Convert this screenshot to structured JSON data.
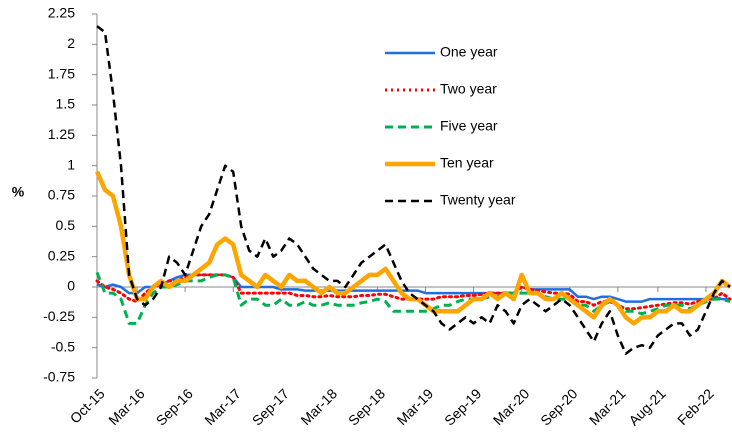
{
  "chart_data": {
    "type": "line",
    "y_label": "%",
    "categories": [
      "Oct-15",
      null,
      null,
      null,
      null,
      "Mar-16",
      null,
      null,
      null,
      null,
      null,
      "Sep-16",
      null,
      null,
      null,
      null,
      null,
      "Mar-17",
      null,
      null,
      null,
      null,
      null,
      "Sep-17",
      null,
      null,
      null,
      null,
      null,
      "Mar-18",
      null,
      null,
      null,
      null,
      null,
      "Sep-18",
      null,
      null,
      null,
      null,
      null,
      "Mar-19",
      null,
      null,
      null,
      null,
      null,
      "Sep-19",
      null,
      null,
      null,
      null,
      null,
      "Mar-20",
      null,
      null,
      null,
      null,
      null,
      "Sep-20",
      null,
      null,
      null,
      null,
      null,
      "Mar-21",
      null,
      null,
      null,
      null,
      "Aug-21",
      null,
      null,
      null,
      null,
      null,
      "Feb-22",
      null,
      null,
      null
    ],
    "ylim": [
      -0.75,
      2.25
    ],
    "yticks": [
      -0.75,
      -0.5,
      -0.25,
      0,
      0.25,
      0.5,
      0.75,
      1,
      1.25,
      1.5,
      1.75,
      2,
      2.25
    ],
    "series": [
      {
        "name": "One year",
        "color": "#1f6fe0",
        "style": "solid",
        "width": 2.5,
        "values": [
          0.02,
          0,
          0.02,
          0,
          -0.05,
          -0.05,
          0,
          0,
          0.02,
          0.05,
          0.08,
          0.1,
          0.1,
          0.1,
          0.1,
          0.1,
          0.1,
          0.08,
          0,
          0,
          0,
          0,
          0,
          -0.02,
          -0.02,
          -0.02,
          -0.03,
          -0.03,
          -0.03,
          -0.03,
          -0.03,
          -0.03,
          -0.03,
          -0.03,
          -0.03,
          -0.03,
          -0.03,
          -0.03,
          -0.03,
          -0.03,
          -0.03,
          -0.05,
          -0.05,
          -0.05,
          -0.05,
          -0.05,
          -0.05,
          -0.05,
          -0.05,
          -0.05,
          -0.05,
          -0.05,
          -0.05,
          0,
          -0.02,
          -0.02,
          -0.02,
          -0.02,
          -0.02,
          -0.02,
          -0.08,
          -0.08,
          -0.1,
          -0.08,
          -0.08,
          -0.1,
          -0.12,
          -0.12,
          -0.12,
          -0.1,
          -0.1,
          -0.1,
          -0.1,
          -0.1,
          -0.1,
          -0.1,
          -0.1,
          -0.08,
          -0.1,
          -0.1
        ]
      },
      {
        "name": "Two year",
        "color": "#ff0000",
        "style": "dotted",
        "width": 3,
        "values": [
          0.05,
          0,
          -0.02,
          -0.05,
          -0.1,
          -0.12,
          -0.05,
          0,
          0.02,
          0.05,
          0.05,
          0.08,
          0.1,
          0.1,
          0.1,
          0.1,
          0.1,
          0.08,
          -0.05,
          -0.05,
          -0.05,
          -0.05,
          -0.05,
          -0.05,
          -0.05,
          -0.07,
          -0.07,
          -0.08,
          -0.08,
          -0.07,
          -0.08,
          -0.08,
          -0.08,
          -0.07,
          -0.07,
          -0.06,
          -0.06,
          -0.08,
          -0.1,
          -0.1,
          -0.1,
          -0.1,
          -0.1,
          -0.08,
          -0.08,
          -0.08,
          -0.07,
          -0.07,
          -0.06,
          -0.05,
          -0.05,
          -0.05,
          -0.05,
          0,
          -0.02,
          -0.03,
          -0.04,
          -0.05,
          -0.05,
          -0.06,
          -0.12,
          -0.12,
          -0.15,
          -0.12,
          -0.12,
          -0.15,
          -0.18,
          -0.18,
          -0.17,
          -0.16,
          -0.15,
          -0.14,
          -0.13,
          -0.13,
          -0.14,
          -0.12,
          -0.1,
          -0.1,
          -0.05,
          -0.1
        ]
      },
      {
        "name": "Five year",
        "color": "#00b050",
        "style": "dashed",
        "width": 3,
        "values": [
          0.12,
          -0.05,
          -0.05,
          -0.1,
          -0.3,
          -0.3,
          -0.15,
          -0.05,
          0,
          0,
          0.02,
          0.05,
          0.05,
          0.05,
          0.08,
          0.1,
          0.1,
          0.08,
          -0.15,
          -0.1,
          -0.1,
          -0.15,
          -0.15,
          -0.1,
          -0.15,
          -0.15,
          -0.12,
          -0.15,
          -0.15,
          -0.13,
          -0.15,
          -0.15,
          -0.15,
          -0.13,
          -0.12,
          -0.1,
          -0.12,
          -0.2,
          -0.2,
          -0.2,
          -0.2,
          -0.2,
          -0.18,
          -0.15,
          -0.15,
          -0.12,
          -0.1,
          -0.1,
          -0.1,
          -0.08,
          -0.08,
          -0.05,
          -0.05,
          -0.05,
          -0.05,
          -0.05,
          -0.08,
          -0.1,
          -0.1,
          -0.1,
          -0.15,
          -0.15,
          -0.2,
          -0.15,
          -0.12,
          -0.15,
          -0.2,
          -0.2,
          -0.22,
          -0.2,
          -0.18,
          -0.15,
          -0.15,
          -0.15,
          -0.18,
          -0.15,
          -0.12,
          -0.1,
          -0.1,
          -0.12
        ]
      },
      {
        "name": "Ten year",
        "color": "#ffa500",
        "style": "solid",
        "width": 4.5,
        "values": [
          0.95,
          0.8,
          0.75,
          0.5,
          0.1,
          -0.1,
          -0.1,
          0,
          0.05,
          0,
          0.05,
          0.05,
          0.1,
          0.15,
          0.2,
          0.35,
          0.4,
          0.35,
          0.1,
          0.05,
          0,
          0.1,
          0.05,
          0,
          0.1,
          0.05,
          0.05,
          0,
          -0.05,
          0,
          -0.05,
          -0.05,
          0,
          0.05,
          0.1,
          0.1,
          0.15,
          0.05,
          -0.05,
          -0.1,
          -0.1,
          -0.15,
          -0.2,
          -0.2,
          -0.2,
          -0.2,
          -0.15,
          -0.1,
          -0.1,
          -0.05,
          -0.1,
          -0.05,
          -0.1,
          0.1,
          -0.05,
          -0.05,
          -0.1,
          -0.1,
          -0.05,
          -0.1,
          -0.15,
          -0.2,
          -0.25,
          -0.15,
          -0.1,
          -0.15,
          -0.25,
          -0.3,
          -0.25,
          -0.25,
          -0.2,
          -0.2,
          -0.15,
          -0.2,
          -0.2,
          -0.15,
          -0.1,
          -0.05,
          0.05,
          0
        ]
      },
      {
        "name": "Twenty year",
        "color": "#000000",
        "style": "dashed",
        "width": 2.5,
        "values": [
          2.15,
          2.1,
          1.6,
          1,
          0.1,
          -0.1,
          -0.15,
          -0.1,
          0,
          0.25,
          0.2,
          0.1,
          0.3,
          0.5,
          0.6,
          0.8,
          1,
          0.95,
          0.5,
          0.3,
          0.25,
          0.4,
          0.25,
          0.3,
          0.4,
          0.35,
          0.25,
          0.15,
          0.1,
          0.05,
          0.05,
          0,
          0.1,
          0.2,
          0.25,
          0.3,
          0.35,
          0.2,
          0.05,
          -0.05,
          -0.1,
          -0.15,
          -0.2,
          -0.3,
          -0.35,
          -0.3,
          -0.25,
          -0.3,
          -0.25,
          -0.3,
          -0.15,
          -0.2,
          -0.3,
          -0.15,
          -0.1,
          -0.15,
          -0.2,
          -0.15,
          -0.1,
          -0.15,
          -0.25,
          -0.35,
          -0.45,
          -0.3,
          -0.2,
          -0.4,
          -0.55,
          -0.5,
          -0.48,
          -0.5,
          -0.4,
          -0.35,
          -0.3,
          -0.3,
          -0.4,
          -0.35,
          -0.2,
          -0.05,
          0.05,
          0
        ]
      }
    ]
  }
}
